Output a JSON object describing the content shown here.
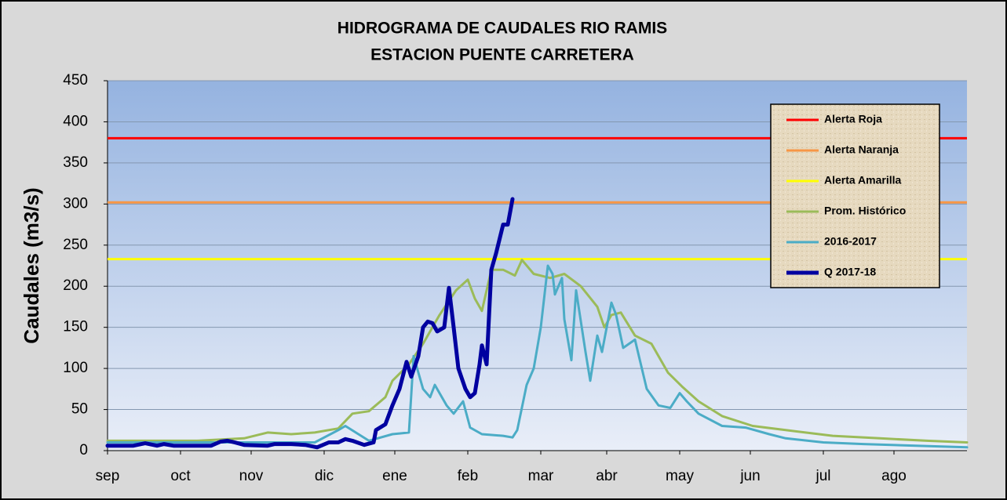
{
  "chart_data": {
    "type": "line",
    "title": "HIDROGRAMA DE CAUDALES RIO RAMIS",
    "subtitle": "ESTACION PUENTE CARRETERA",
    "y_label": "Caudales (m3/s)",
    "xlim": [
      0,
      365
    ],
    "xticks": [
      {
        "value": 0,
        "label": "sep"
      },
      {
        "value": 31,
        "label": "oct"
      },
      {
        "value": 61,
        "label": "nov"
      },
      {
        "value": 92,
        "label": "dic"
      },
      {
        "value": 122,
        "label": "ene"
      },
      {
        "value": 153,
        "label": "feb"
      },
      {
        "value": 184,
        "label": "mar"
      },
      {
        "value": 212,
        "label": "abr"
      },
      {
        "value": 243,
        "label": "may"
      },
      {
        "value": 273,
        "label": "jun"
      },
      {
        "value": 304,
        "label": "jul"
      },
      {
        "value": 334,
        "label": "ago"
      }
    ],
    "ylim": [
      0,
      450
    ],
    "yticks": [
      0,
      50,
      100,
      150,
      200,
      250,
      300,
      350,
      400,
      450
    ],
    "grid": true,
    "legend": "upper right",
    "series": [
      {
        "name": "Alerta Roja",
        "color": "#ff0000",
        "value": 380
      },
      {
        "name": "Alerta Naranja",
        "color": "#f79646",
        "value": 302
      },
      {
        "name": "Alerta Amarilla",
        "color": "#ffff00",
        "value": 233
      },
      {
        "name": "Prom. Histórico",
        "color": "#9bbb59",
        "x": [
          0,
          38,
          58,
          68,
          78,
          88,
          98,
          104,
          111,
          118,
          121,
          128,
          134,
          141,
          148,
          153,
          156,
          159,
          163,
          168,
          173,
          176,
          181,
          188,
          194,
          201,
          208,
          211,
          214,
          218,
          224,
          231,
          238,
          244,
          251,
          261,
          274,
          288,
          308,
          328,
          348,
          365
        ],
        "values": [
          12,
          12,
          15,
          22,
          20,
          22,
          27,
          45,
          48,
          65,
          85,
          105,
          130,
          165,
          195,
          208,
          185,
          170,
          220,
          220,
          213,
          232,
          215,
          210,
          215,
          200,
          175,
          150,
          165,
          168,
          140,
          130,
          95,
          78,
          60,
          42,
          30,
          25,
          18,
          15,
          12,
          10
        ]
      },
      {
        "name": "2016-2017",
        "color": "#4bacc6",
        "x": [
          0,
          54,
          88,
          98,
          101,
          111,
          121,
          128,
          130,
          134,
          137,
          139,
          144,
          147,
          151,
          154,
          159,
          168,
          172,
          174,
          178,
          181,
          184,
          187,
          189,
          190,
          193,
          194,
          197,
          199,
          203,
          205,
          208,
          210,
          214,
          216,
          219,
          224,
          229,
          234,
          239,
          243,
          246,
          251,
          261,
          271,
          281,
          288,
          304,
          321,
          365
        ],
        "values": [
          10,
          10,
          10,
          25,
          30,
          12,
          20,
          22,
          115,
          75,
          65,
          80,
          55,
          45,
          60,
          28,
          20,
          18,
          16,
          25,
          80,
          100,
          150,
          225,
          215,
          190,
          210,
          160,
          110,
          195,
          120,
          85,
          140,
          120,
          180,
          165,
          125,
          135,
          75,
          55,
          52,
          70,
          60,
          45,
          30,
          28,
          20,
          15,
          10,
          8,
          4
        ]
      },
      {
        "name": "Q 2017-18",
        "color": "#0000a0",
        "x": [
          0,
          11,
          16,
          21,
          24,
          28,
          44,
          48,
          51,
          54,
          58,
          68,
          71,
          78,
          84,
          89,
          94,
          98,
          101,
          104,
          109,
          113,
          114,
          118,
          121,
          124,
          127,
          129,
          132,
          134,
          136,
          138,
          140,
          143,
          145,
          147,
          149,
          152,
          154,
          156,
          158,
          159,
          161,
          163,
          165,
          168,
          170,
          172
        ],
        "values": [
          6,
          6,
          9,
          6,
          8,
          6,
          6,
          11,
          12,
          10,
          7,
          6,
          8,
          8,
          7,
          4,
          10,
          10,
          14,
          12,
          7,
          10,
          25,
          32,
          55,
          75,
          108,
          90,
          115,
          150,
          157,
          155,
          145,
          150,
          198,
          150,
          100,
          75,
          65,
          70,
          105,
          128,
          105,
          220,
          240,
          275,
          275,
          306
        ]
      }
    ]
  }
}
